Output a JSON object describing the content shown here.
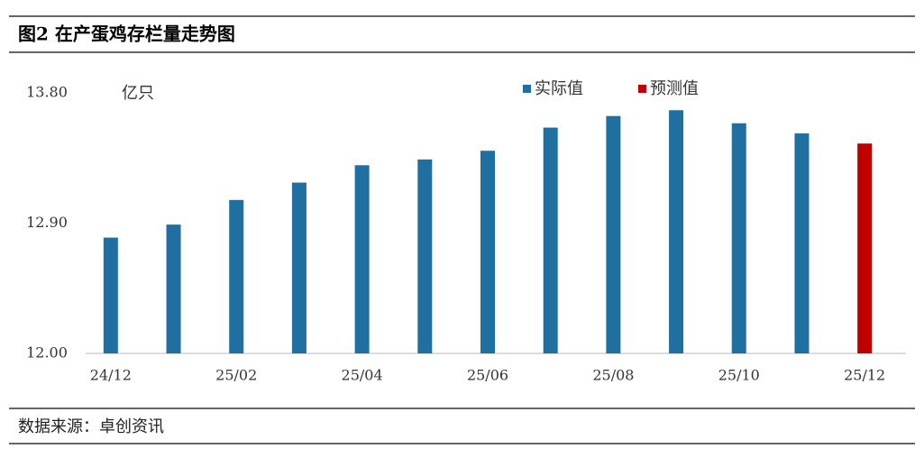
{
  "chart_data": {
    "type": "bar",
    "title": "图2 在产蛋鸡存栏量走势图",
    "y_unit": "亿只",
    "source": "数据来源：卓创资讯",
    "categories": [
      "24/12",
      null,
      "25/02",
      null,
      "25/04",
      null,
      "25/06",
      null,
      "25/08",
      null,
      "25/10",
      null,
      "25/12"
    ],
    "series": [
      {
        "name": "实际值",
        "color": "#1f6fa0",
        "values": [
          12.8,
          12.89,
          13.06,
          13.18,
          13.3,
          13.34,
          13.4,
          13.56,
          13.64,
          13.68,
          13.59,
          13.52,
          null
        ]
      },
      {
        "name": "预测值",
        "color": "#c00000",
        "values": [
          null,
          null,
          null,
          null,
          null,
          null,
          null,
          null,
          null,
          null,
          null,
          null,
          13.45
        ]
      }
    ],
    "ylim": [
      12.0,
      13.8
    ],
    "yticks": [
      {
        "value": 12.0,
        "label": "12.00"
      },
      {
        "value": 12.9,
        "label": "12.90"
      },
      {
        "value": 13.8,
        "label": "13.80"
      }
    ],
    "grid": false
  }
}
